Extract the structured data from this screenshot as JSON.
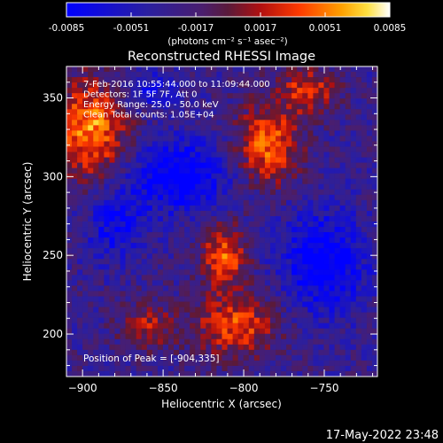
{
  "chart_data": {
    "type": "heatmap",
    "title": "Reconstructed RHESSI Image",
    "xlabel": "Heliocentric X (arcsec)",
    "ylabel": "Heliocentric Y (arcsec)",
    "xlim": [
      -910,
      -717
    ],
    "ylim": [
      173,
      370
    ],
    "x_ticks": [
      -900,
      -850,
      -800,
      -750
    ],
    "y_ticks": [
      200,
      250,
      300,
      350
    ],
    "colorbar": {
      "ticks": [
        "-0.0085",
        "-0.0051",
        "-0.0017",
        "0.0017",
        "0.0051",
        "0.0085"
      ],
      "units": "(photons cm⁻² s⁻¹ asec⁻²)",
      "range": [
        -0.0085,
        0.0085
      ]
    },
    "annotations": [
      "7-Feb-2016 10:55:44.000 to 11:09:44.000",
      "Detectors: 1F 5F 7F, Att 0",
      "Energy Range: 25.0 - 50.0 keV",
      "Clean    Total counts: 1.05E+04"
    ],
    "peak_label": "Position of Peak = [-904,335]",
    "grid_cols": 58,
    "grid_rows": 58,
    "sources": [
      {
        "x": -812,
        "y": 250,
        "sx": 10,
        "sy": 14,
        "amp": 0.007
      },
      {
        "x": -805,
        "y": 205,
        "sx": 18,
        "sy": 14,
        "amp": 0.0065
      },
      {
        "x": -860,
        "y": 205,
        "sx": 12,
        "sy": 10,
        "amp": 0.0045
      },
      {
        "x": -895,
        "y": 330,
        "sx": 16,
        "sy": 22,
        "amp": 0.0085
      },
      {
        "x": -785,
        "y": 320,
        "sx": 14,
        "sy": 18,
        "amp": 0.0075
      },
      {
        "x": -760,
        "y": 355,
        "sx": 12,
        "sy": 10,
        "amp": 0.006
      },
      {
        "x": -840,
        "y": 300,
        "sx": 22,
        "sy": 16,
        "amp": -0.0065
      },
      {
        "x": -750,
        "y": 245,
        "sx": 18,
        "sy": 22,
        "amp": -0.0065
      },
      {
        "x": -860,
        "y": 355,
        "sx": 12,
        "sy": 8,
        "amp": -0.004
      },
      {
        "x": -880,
        "y": 270,
        "sx": 12,
        "sy": 16,
        "amp": -0.0045
      }
    ],
    "baseline": -0.003
  },
  "footer": {
    "timestamp": "17-May-2022 23:48"
  }
}
